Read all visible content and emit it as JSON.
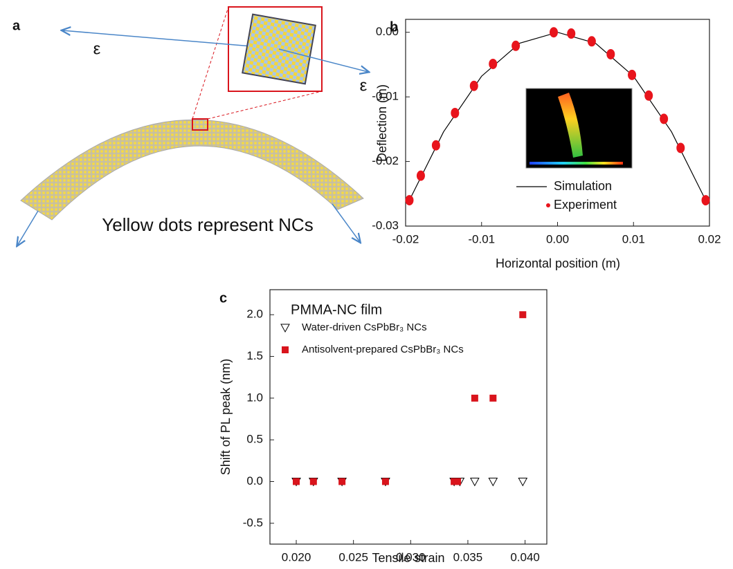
{
  "diagram": {
    "panel_label": "a",
    "strain_labels": [
      "ε",
      "ε"
    ],
    "caption": "Yellow dots represent NCs"
  },
  "chart_data": [
    {
      "type": "scatter",
      "panel_label": "b",
      "xlabel": "Horizontal position (m)",
      "ylabel": "Deflection (m)",
      "xlim": [
        -0.02,
        0.02
      ],
      "ylim": [
        -0.03,
        0.002
      ],
      "xticks": [
        -0.02,
        -0.01,
        {
          "value": 0,
          "label": "0.00"
        },
        0.01,
        0.02
      ],
      "yticks": [
        -0.03,
        -0.02,
        -0.01,
        {
          "value": 0,
          "label": "0.00"
        }
      ],
      "series": [
        {
          "name": "Simulation",
          "type": "line",
          "color": "#000000",
          "x": [
            -0.0195,
            -0.015,
            -0.01,
            -0.005,
            0,
            0.005,
            0.01,
            0.015,
            0.0195
          ],
          "values": [
            -0.026,
            -0.0154,
            -0.0068,
            -0.0017,
            0,
            -0.0017,
            -0.0068,
            -0.0154,
            -0.026
          ]
        },
        {
          "name": "Experiment",
          "type": "scatter",
          "marker": "circle",
          "color": "#e8141c",
          "x": [
            -0.0195,
            -0.018,
            -0.016,
            -0.0135,
            -0.011,
            -0.0085,
            -0.0055,
            -0.0005,
            0.0018,
            0.0045,
            0.007,
            0.0098,
            0.012,
            0.014,
            0.0162,
            0.0195
          ],
          "values": [
            -0.026,
            -0.0222,
            -0.0175,
            -0.0125,
            -0.0083,
            -0.0049,
            -0.0021,
            0,
            -0.0002,
            -0.0014,
            -0.0034,
            -0.0066,
            -0.0098,
            -0.0134,
            -0.0179,
            -0.026
          ]
        }
      ]
    },
    {
      "type": "scatter",
      "panel_label": "c",
      "xlabel": "Tensile strain",
      "ylabel": "Shift of PL peak (nm)",
      "legend_title": "PMMA-NC film",
      "xlim": [
        0.0177,
        0.0419
      ],
      "ylim": [
        -0.75,
        2.3
      ],
      "xticks": [
        {
          "value": 0.02,
          "label": "0.020"
        },
        {
          "value": 0.025,
          "label": "0.025"
        },
        {
          "value": 0.03,
          "label": "0.030"
        },
        {
          "value": 0.035,
          "label": "0.035"
        },
        {
          "value": 0.04,
          "label": "0.040"
        }
      ],
      "yticks": [
        -0.5,
        {
          "value": 0,
          "label": "0.0"
        },
        0.5,
        {
          "value": 1,
          "label": "1.0"
        },
        1.5,
        {
          "value": 2,
          "label": "2.0"
        }
      ],
      "series": [
        {
          "name": "Water-driven CsPbBr₃ NCs",
          "type": "scatter",
          "marker": "triangle-down",
          "color": "#000000",
          "x": [
            0.02,
            0.0215,
            0.024,
            0.0278,
            0.0338,
            0.0343,
            0.0356,
            0.0372,
            0.0398
          ],
          "values": [
            0,
            0,
            0,
            0,
            0,
            0,
            0,
            0,
            0
          ]
        },
        {
          "name": "Antisolvent-prepared  CsPbBr₃ NCs",
          "type": "scatter",
          "marker": "square",
          "color": "#d9141c",
          "x": [
            0.02,
            0.0215,
            0.024,
            0.0278,
            0.0338,
            0.0341,
            0.0356,
            0.0372,
            0.0398
          ],
          "values": [
            0,
            0,
            0,
            0,
            0,
            0,
            1,
            1,
            2
          ]
        }
      ]
    }
  ]
}
